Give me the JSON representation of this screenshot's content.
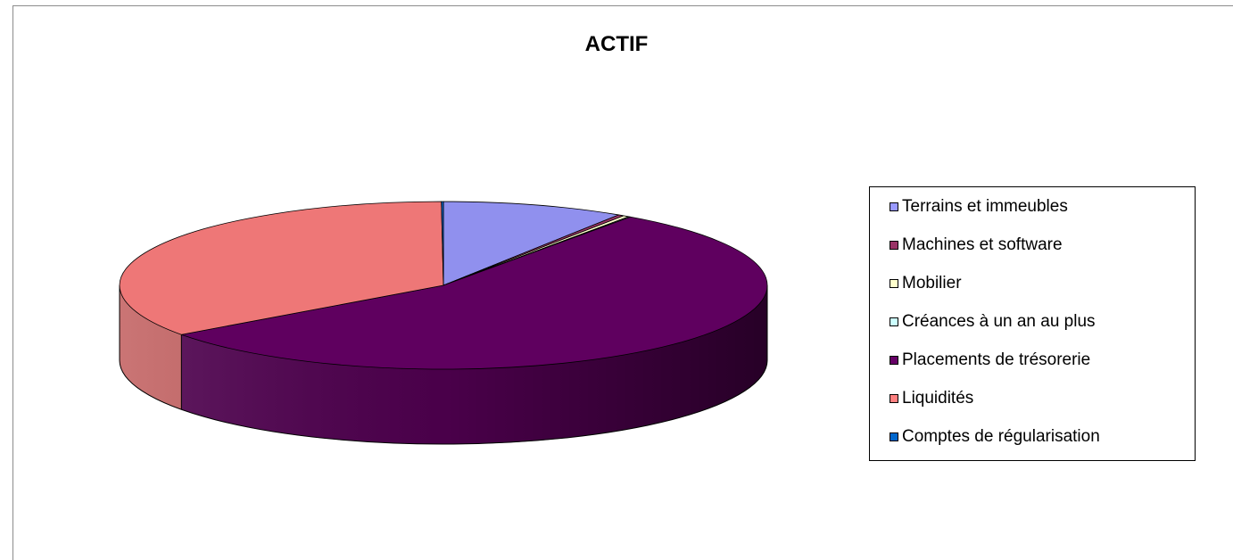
{
  "chart_data": {
    "type": "pie",
    "title": "ACTIF",
    "legend_position": "right",
    "slices": [
      {
        "label": "Terrains et immeubles",
        "value": 9.1,
        "color": "#9090ee",
        "legend_color": "#9999ff"
      },
      {
        "label": "Machines et software",
        "value": 0.3,
        "color": "#993366",
        "legend_color": "#993366"
      },
      {
        "label": "Mobilier",
        "value": 0.3,
        "color": "#ffffcc",
        "legend_color": "#ffffcc"
      },
      {
        "label": "Créances à un an au plus",
        "value": 0.1,
        "color": "#ccffff",
        "legend_color": "#ccffff"
      },
      {
        "label": "Placements de trésorerie",
        "value": 55.2,
        "color": "#5f005f",
        "legend_color": "#660066"
      },
      {
        "label": "Liquidités",
        "value": 34.9,
        "color": "#ee7777",
        "legend_color": "#ff8080"
      },
      {
        "label": "Comptes de régularisation",
        "value": 0.1,
        "color": "#0066cc",
        "legend_color": "#0066cc"
      }
    ]
  }
}
